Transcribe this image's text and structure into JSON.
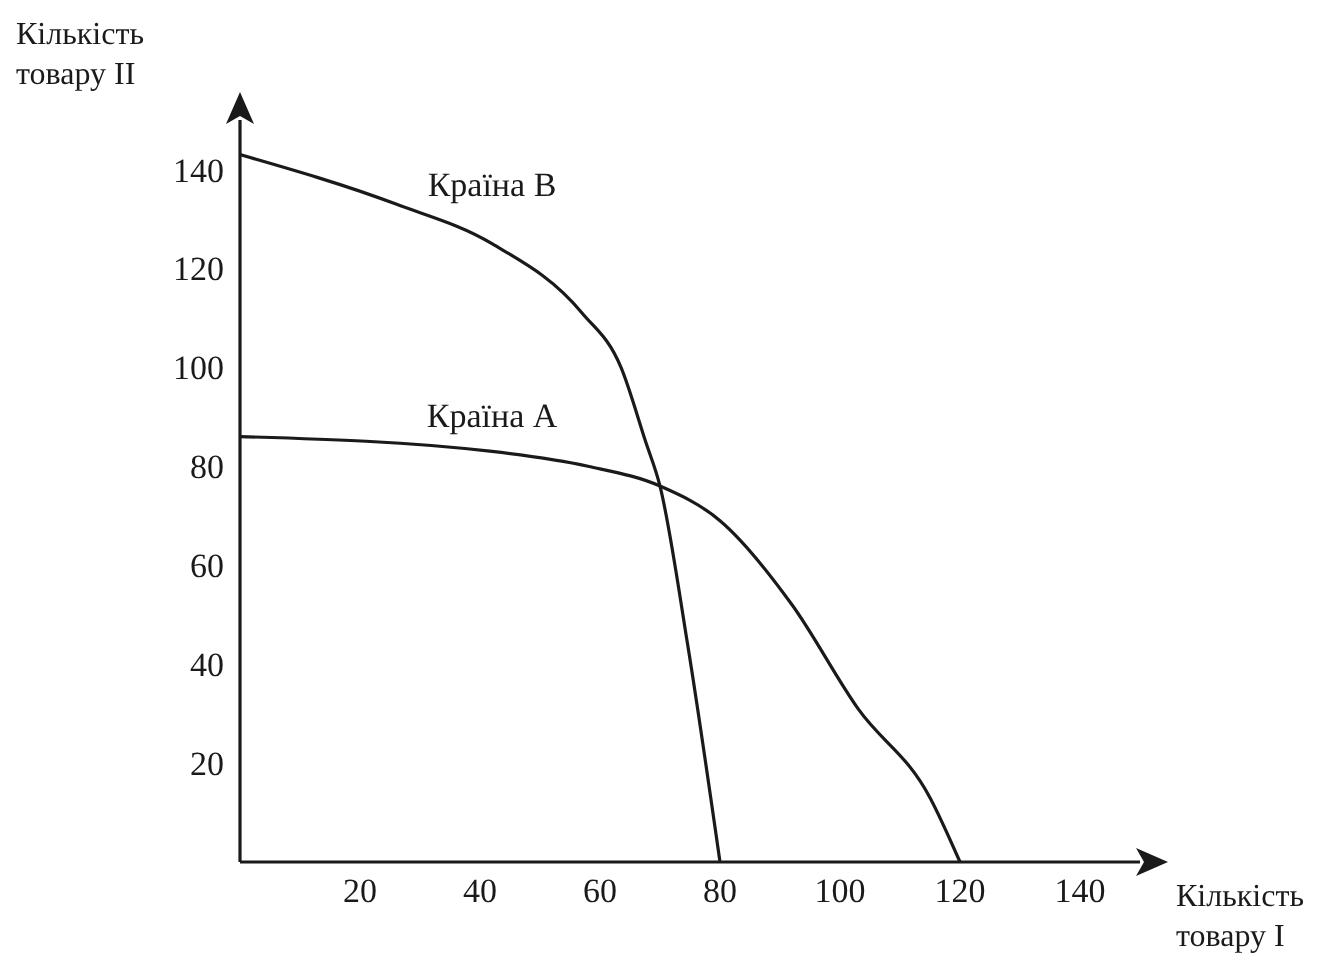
{
  "chart_data": {
    "type": "line",
    "xlabel": "Кількість товару I",
    "ylabel": "Кількість товару II",
    "xlim": [
      0,
      150
    ],
    "ylim": [
      0,
      150
    ],
    "xticks": [
      20,
      40,
      60,
      80,
      100,
      120,
      140
    ],
    "yticks": [
      20,
      40,
      60,
      80,
      100,
      120,
      140
    ],
    "grid": false,
    "legend": false,
    "marker": "none",
    "line_style": "solid",
    "series": [
      {
        "name": "Країна B",
        "color": "#1a1a1a",
        "x": [
          0,
          26,
          42,
          57,
          63.5,
          67.6,
          70,
          74.6,
          80
        ],
        "values": [
          143,
          133,
          125,
          111,
          100,
          85,
          76,
          44,
          0
        ]
      },
      {
        "name": "Країна A",
        "color": "#1a1a1a",
        "x": [
          0,
          42,
          58,
          70,
          80,
          92,
          103,
          115,
          120
        ],
        "values": [
          86,
          83,
          80,
          76,
          69,
          52,
          31,
          13,
          0
        ]
      }
    ]
  }
}
